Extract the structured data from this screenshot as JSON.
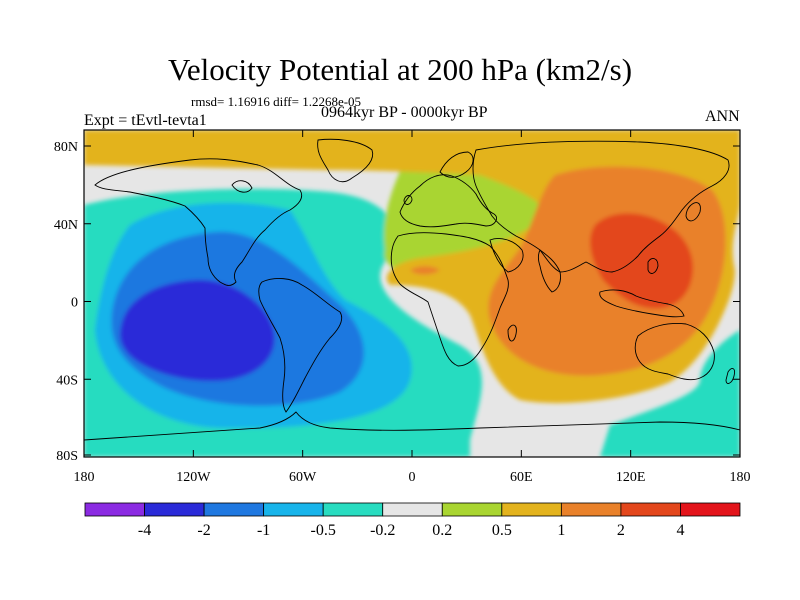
{
  "title": "Velocity Potential at 200 hPa (km2/s)",
  "stats": "rmsd= 1.16916 diff= 1.2268e-05",
  "experiment": "Expt = tEvtl-tevta1",
  "period": "0964kyr BP - 0000kyr BP",
  "season": "ANN",
  "axes": {
    "y_ticks": [
      "80N",
      "40N",
      "0",
      "40S",
      "80S"
    ],
    "x_ticks": [
      "180",
      "120W",
      "60W",
      "0",
      "60E",
      "120E",
      "180"
    ]
  },
  "colorbar": {
    "labels": [
      "-4",
      "-2",
      "-1",
      "-0.5",
      "-0.2",
      "0.2",
      "0.5",
      "1",
      "2",
      "4"
    ],
    "colors": [
      "#8b2be2",
      "#2a2ad8",
      "#1f78e0",
      "#18b4ea",
      "#28dcc0",
      "#e6e6e6",
      "#a9d531",
      "#e3b31e",
      "#e9812a",
      "#e3471c",
      "#e3141b"
    ]
  }
}
